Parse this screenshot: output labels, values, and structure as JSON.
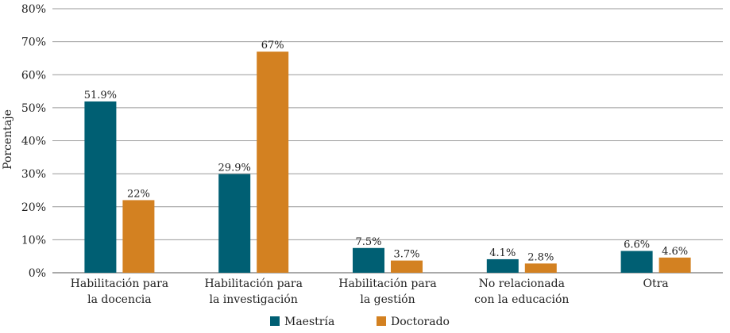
{
  "chart_data": {
    "type": "bar",
    "ylabel": "Porcentaje",
    "ylim": [
      0,
      80
    ],
    "y_ticks": [
      0,
      10,
      20,
      30,
      40,
      50,
      60,
      70,
      80
    ],
    "y_tick_labels": [
      "0%",
      "10%",
      "20%",
      "30%",
      "40%",
      "50%",
      "60%",
      "70%",
      "80%"
    ],
    "categories": [
      [
        "Habilitación para",
        "la docencia"
      ],
      [
        "Habilitación para",
        "la investigación"
      ],
      [
        "Habilitación para",
        "la gestión"
      ],
      [
        "No relacionada",
        "con la educación"
      ],
      [
        "Otra"
      ]
    ],
    "series": [
      {
        "name": "Maestría",
        "color": "#005f73",
        "values": [
          51.9,
          29.9,
          7.5,
          4.1,
          6.6
        ],
        "labels": [
          "51.9%",
          "29.9%",
          "7.5%",
          "4.1%",
          "6.6%"
        ]
      },
      {
        "name": "Doctorado",
        "color": "#d38121",
        "values": [
          22,
          67,
          3.7,
          2.8,
          4.6
        ],
        "labels": [
          "22%",
          "67%",
          "3.7%",
          "2.8%",
          "4.6%"
        ]
      }
    ],
    "grid": true,
    "legend_position": "bottom"
  }
}
